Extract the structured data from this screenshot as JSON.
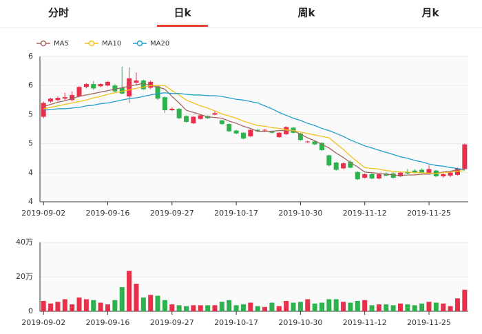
{
  "tabs": [
    "分时",
    "日k",
    "周k",
    "月k"
  ],
  "active_tab": 1,
  "chart_data": [
    {
      "type": "candlestick",
      "categories": [
        "2019-09-02",
        null,
        null,
        null,
        null,
        null,
        null,
        null,
        null,
        "2019-09-16",
        null,
        null,
        null,
        null,
        null,
        null,
        null,
        null,
        "2019-09-27",
        null,
        null,
        null,
        null,
        null,
        null,
        null,
        null,
        "2019-10-17",
        null,
        null,
        null,
        null,
        null,
        null,
        null,
        null,
        "2019-10-30",
        null,
        null,
        null,
        null,
        null,
        null,
        null,
        null,
        "2019-11-12",
        null,
        null,
        null,
        null,
        null,
        null,
        null,
        null,
        "2019-11-25",
        null,
        null,
        null,
        null,
        null
      ],
      "open": [
        5.17,
        5.38,
        5.4,
        5.42,
        5.4,
        5.45,
        5.58,
        5.62,
        5.59,
        5.6,
        5.6,
        5.57,
        5.45,
        5.64,
        5.67,
        5.57,
        5.59,
        5.44,
        5.26,
        5.28,
        5.18,
        5.08,
        5.14,
        5.18,
        5.2,
        5.12,
        5.07,
        4.98,
        4.95,
        4.9,
        4.99,
        4.98,
        4.97,
        4.89,
        4.93,
        5.02,
        4.94,
        4.82,
        4.83,
        4.81,
        4.64,
        4.54,
        4.46,
        4.55,
        4.41,
        4.33,
        4.38,
        4.32,
        4.39,
        4.39,
        4.35,
        4.41,
        4.43,
        4.44,
        4.4,
        4.43,
        4.35,
        4.36,
        4.37,
        4.45
      ],
      "close": [
        5.36,
        5.42,
        5.43,
        5.44,
        5.47,
        5.58,
        5.62,
        5.56,
        5.62,
        5.65,
        5.52,
        5.49,
        5.7,
        5.67,
        5.55,
        5.65,
        5.42,
        5.26,
        5.28,
        5.15,
        5.1,
        5.17,
        5.19,
        5.15,
        5.22,
        5.07,
        4.97,
        4.94,
        4.87,
        4.99,
        4.97,
        4.99,
        4.95,
        4.95,
        5.03,
        4.95,
        4.85,
        4.83,
        4.79,
        4.71,
        4.5,
        4.44,
        4.53,
        4.47,
        4.31,
        4.38,
        4.32,
        4.38,
        4.36,
        4.33,
        4.4,
        4.39,
        4.4,
        4.4,
        4.45,
        4.35,
        4.38,
        4.4,
        4.46,
        4.79
      ],
      "low": [
        5.15,
        5.36,
        5.38,
        5.4,
        5.38,
        5.44,
        5.56,
        5.54,
        5.58,
        5.59,
        5.51,
        5.48,
        5.36,
        5.6,
        5.54,
        5.55,
        5.4,
        5.22,
        5.25,
        5.14,
        5.09,
        5.07,
        5.13,
        5.14,
        5.19,
        5.06,
        4.96,
        4.93,
        4.86,
        4.89,
        4.96,
        4.96,
        4.94,
        4.88,
        4.92,
        4.94,
        4.84,
        4.81,
        4.78,
        4.7,
        4.49,
        4.43,
        4.45,
        4.46,
        4.3,
        4.32,
        4.31,
        4.31,
        4.35,
        4.32,
        4.34,
        4.38,
        4.39,
        4.39,
        4.39,
        4.34,
        4.33,
        4.34,
        4.36,
        4.44
      ],
      "high": [
        5.38,
        5.43,
        5.45,
        5.5,
        5.52,
        5.59,
        5.63,
        5.66,
        5.63,
        5.66,
        5.62,
        5.86,
        5.85,
        5.78,
        5.68,
        5.67,
        5.6,
        5.45,
        5.3,
        5.29,
        5.19,
        5.18,
        5.2,
        5.19,
        5.25,
        5.13,
        5.08,
        4.99,
        4.96,
        5.0,
        5.0,
        5.0,
        4.98,
        4.96,
        5.04,
        5.03,
        4.95,
        4.84,
        4.84,
        4.82,
        4.65,
        4.55,
        4.54,
        4.57,
        4.42,
        4.39,
        4.39,
        4.39,
        4.4,
        4.4,
        4.41,
        4.45,
        4.45,
        4.46,
        4.5,
        4.44,
        4.39,
        4.41,
        4.47,
        4.8
      ],
      "up_color": "#e8304a",
      "down_color": "#2eb24e",
      "series": [
        {
          "name": "MA5",
          "color": "#a0675e",
          "values": [
            5.31,
            5.34,
            5.37,
            5.39,
            5.42,
            5.45,
            5.47,
            5.49,
            5.51,
            5.53,
            5.55,
            5.57,
            5.59,
            5.61,
            5.63,
            5.6,
            5.58,
            5.55,
            5.45,
            5.36,
            5.26,
            5.23,
            5.2,
            5.17,
            5.16,
            5.15,
            5.11,
            5.08,
            5.04,
            5.01,
            4.97,
            4.97,
            4.97,
            4.98,
            4.98,
            4.98,
            4.93,
            4.88,
            4.84,
            4.79,
            4.74,
            4.67,
            4.61,
            4.54,
            4.48,
            4.41,
            4.4,
            4.39,
            4.38,
            4.37,
            4.36,
            4.37,
            4.37,
            4.38,
            4.38,
            4.39,
            4.41,
            4.42,
            4.44,
            4.45
          ]
        },
        {
          "name": "MA10",
          "color": "#f2c21b",
          "values": [
            5.28,
            5.3,
            5.32,
            5.34,
            5.36,
            5.38,
            5.4,
            5.43,
            5.45,
            5.48,
            5.5,
            5.52,
            5.54,
            5.56,
            5.58,
            5.6,
            5.6,
            5.6,
            5.53,
            5.47,
            5.4,
            5.36,
            5.32,
            5.29,
            5.25,
            5.21,
            5.18,
            5.15,
            5.11,
            5.08,
            5.05,
            5.04,
            5.02,
            5.01,
            4.99,
            4.98,
            4.96,
            4.94,
            4.92,
            4.9,
            4.88,
            4.8,
            4.72,
            4.63,
            4.55,
            4.47,
            4.46,
            4.45,
            4.43,
            4.42,
            4.41,
            4.41,
            4.4,
            4.4,
            4.39,
            4.39,
            4.4,
            4.41,
            4.42,
            4.43
          ]
        },
        {
          "name": "MA20",
          "color": "#1f9ecb",
          "values": [
            5.26,
            5.27,
            5.28,
            5.28,
            5.29,
            5.3,
            5.32,
            5.33,
            5.35,
            5.36,
            5.38,
            5.4,
            5.42,
            5.43,
            5.45,
            5.47,
            5.49,
            5.5,
            5.49,
            5.49,
            5.48,
            5.47,
            5.47,
            5.46,
            5.46,
            5.45,
            5.43,
            5.41,
            5.4,
            5.38,
            5.36,
            5.32,
            5.28,
            5.23,
            5.19,
            5.15,
            5.12,
            5.08,
            5.05,
            5.01,
            4.98,
            4.94,
            4.9,
            4.85,
            4.81,
            4.77,
            4.74,
            4.71,
            4.68,
            4.65,
            4.62,
            4.6,
            4.57,
            4.55,
            4.52,
            4.5,
            4.49,
            4.47,
            4.46,
            4.44
          ]
        }
      ],
      "ylim": [
        4,
        6
      ],
      "yticks": [
        4,
        {
          "value": 4.4,
          "label": "4"
        },
        {
          "value": 4.8,
          "label": "5"
        },
        {
          "value": 5.2,
          "label": "5"
        },
        {
          "value": 5.6,
          "label": "6"
        },
        6
      ],
      "grid": true
    },
    {
      "type": "bar",
      "values": [
        6,
        4.5,
        5.5,
        7,
        4,
        8,
        7,
        6.5,
        5,
        4,
        6.5,
        14,
        23.5,
        16,
        8,
        9.5,
        9,
        6.5,
        4,
        3.5,
        3,
        3.5,
        3.5,
        3.5,
        3.5,
        5.5,
        6.5,
        3.5,
        4,
        5,
        3,
        2.5,
        5,
        3,
        6,
        5,
        5.5,
        7,
        4.5,
        5,
        7,
        7,
        5.5,
        5,
        6,
        6.5,
        3.5,
        4,
        4,
        3.5,
        4.5,
        4,
        3.5,
        4.5,
        5.5,
        5,
        4.5,
        3,
        7.5,
        12.5
      ],
      "ylim": [
        0,
        40
      ],
      "yticks": [
        0,
        {
          "value": 20,
          "label": "20万"
        },
        {
          "value": 40,
          "label": "40万"
        }
      ],
      "grid": true
    }
  ]
}
